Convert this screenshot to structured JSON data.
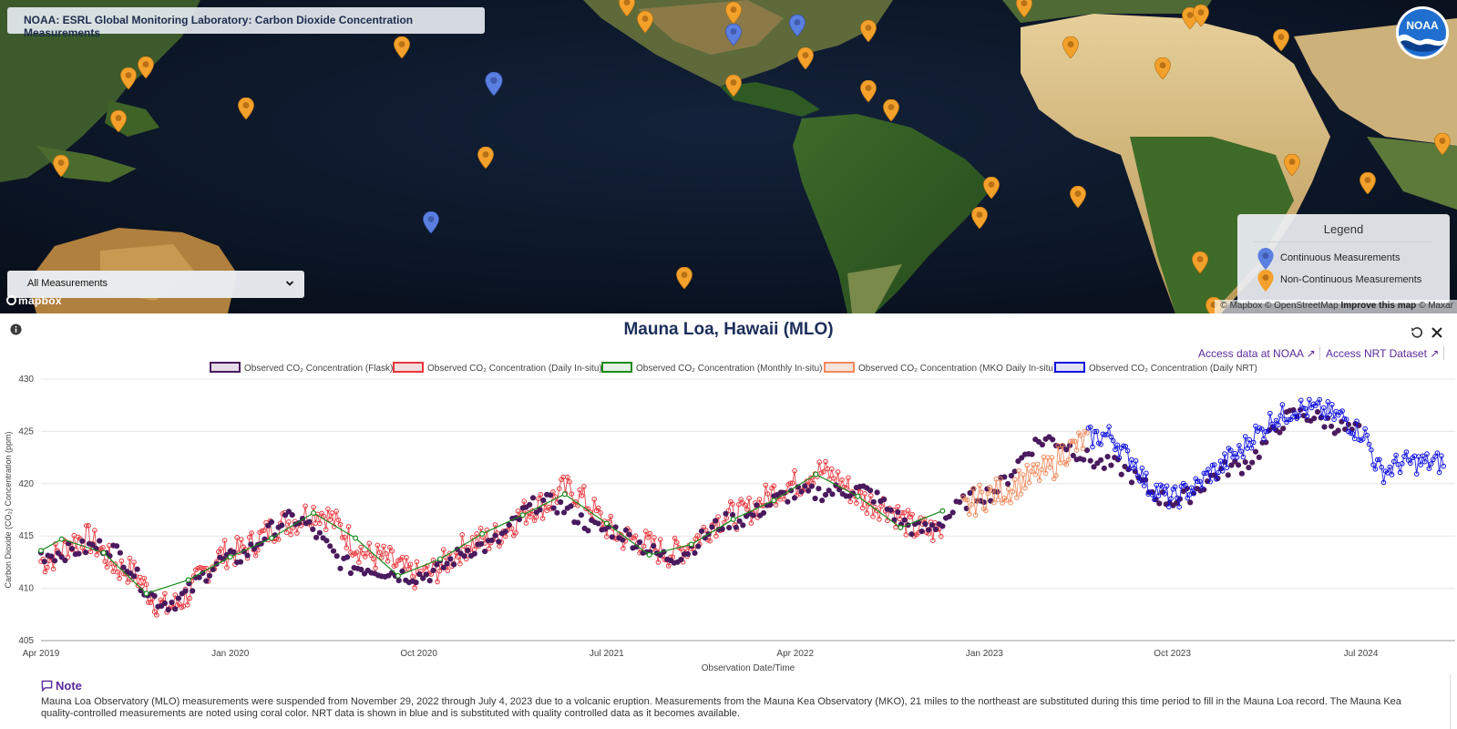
{
  "map": {
    "title": "NOAA: ESRL Global Monitoring Laboratory: Carbon Dioxide Concentration Measurements",
    "filter": {
      "selected": "All Measurements"
    },
    "legend": {
      "title": "Legend",
      "items": [
        {
          "label": "Continuous Measurements",
          "color": "#5b7fe0",
          "icon": "marker-icon"
        },
        {
          "label": "Non-Continuous Measurements",
          "color": "#f4a12c",
          "icon": "marker-icon"
        }
      ]
    },
    "attribution": {
      "mapbox": "© Mapbox",
      "osm": "© OpenStreetMap",
      "improve": "Improve this map",
      "maxar": "© Maxar"
    },
    "mapbox_logo": "mapbox",
    "noaa_logo": "NOAA"
  },
  "panel": {
    "title": "Mauna Loa, Hawaii (MLO)",
    "links": [
      {
        "label": "Access data at NOAA ↗"
      },
      {
        "label": "Access NRT Dataset ↗"
      }
    ]
  },
  "chart_data": {
    "type": "line",
    "xlabel": "Observation Date/Time",
    "ylabel": "Carbon Dioxide (CO₂) Concentration (ppm)",
    "ylim": [
      405,
      430
    ],
    "yticks": [
      "430",
      "425",
      "420",
      "415",
      "410",
      "405"
    ],
    "xticks": [
      "Apr 2019",
      "Jan 2020",
      "Oct 2020",
      "Jul 2021",
      "Apr 2022",
      "Jan 2023",
      "Oct 2023",
      "Jul 2024"
    ],
    "grid": true,
    "legend_position": "top",
    "series": [
      {
        "name": "Observed CO₂ Concentration (Flask)",
        "color": "#4a1a5e",
        "fill": "#e6dbe8",
        "x": [
          "2019-04",
          "2019-07",
          "2019-10",
          "2020-01",
          "2020-04",
          "2020-07",
          "2020-10",
          "2021-01",
          "2021-04",
          "2021-07",
          "2021-10",
          "2022-01",
          "2022-04",
          "2022-07",
          "2022-10",
          "2023-01",
          "2023-04",
          "2023-07",
          "2023-10",
          "2024-01",
          "2024-04",
          "2024-07"
        ],
        "values": [
          413.2,
          414.0,
          408.6,
          412.8,
          416.6,
          412.0,
          411.2,
          414.0,
          418.2,
          415.6,
          413.0,
          416.5,
          419.0,
          419.4,
          415.6,
          419.0,
          424.2,
          421.8,
          418.4,
          421.6,
          426.6,
          425.0
        ]
      },
      {
        "name": "Observed CO₂ Concentration (Daily In-situ)",
        "color": "#e8363d",
        "fill": "#f2dede",
        "x": [
          "2019-04",
          "2019-06",
          "2019-08",
          "2019-10",
          "2020-01",
          "2020-04",
          "2020-05",
          "2020-08",
          "2020-10",
          "2021-01",
          "2021-04",
          "2021-05",
          "2021-08",
          "2021-10",
          "2022-01",
          "2022-04",
          "2022-05",
          "2022-08",
          "2022-10",
          "2022-11"
        ],
        "values": [
          412.6,
          414.8,
          411.8,
          408.2,
          413.4,
          416.4,
          417.4,
          413.0,
          411.2,
          414.6,
          418.0,
          419.4,
          414.8,
          413.4,
          417.0,
          420.0,
          421.2,
          418.0,
          415.6,
          415.4
        ]
      },
      {
        "name": "Observed CO₂ Concentration (Monthly In-situ)",
        "color": "#1a8a1a",
        "fill": "#e6f2e6",
        "x": [
          "2019-04",
          "2019-05",
          "2019-07",
          "2019-09",
          "2019-11",
          "2020-01",
          "2020-03",
          "2020-05",
          "2020-07",
          "2020-09",
          "2020-11",
          "2021-01",
          "2021-03",
          "2021-05",
          "2021-07",
          "2021-09",
          "2021-11",
          "2022-01",
          "2022-03",
          "2022-05",
          "2022-07",
          "2022-09",
          "2022-11"
        ],
        "values": [
          413.6,
          414.7,
          413.4,
          409.5,
          410.8,
          413.0,
          414.8,
          417.2,
          414.8,
          411.2,
          412.8,
          415.2,
          417.0,
          419.0,
          416.2,
          413.2,
          414.2,
          416.6,
          418.4,
          420.9,
          418.8,
          415.8,
          417.4
        ]
      },
      {
        "name": "Observed CO₂ Concentration (MKO Daily In-situ)",
        "color": "#f08a5d",
        "fill": "#f6e3da",
        "x": [
          "2022-12",
          "2023-01",
          "2023-02",
          "2023-03",
          "2023-04",
          "2023-05",
          "2023-06"
        ],
        "values": [
          417.6,
          418.8,
          419.4,
          420.4,
          421.2,
          423.2,
          424.2
        ]
      },
      {
        "name": "Observed CO₂ Concentration (Daily NRT)",
        "color": "#1010e0",
        "fill": "#e2e2f6",
        "x": [
          "2023-06",
          "2023-07",
          "2023-08",
          "2023-09",
          "2023-10",
          "2023-11",
          "2023-12",
          "2024-01",
          "2024-02",
          "2024-03",
          "2024-04",
          "2024-05",
          "2024-06",
          "2024-07",
          "2024-08",
          "2024-09"
        ],
        "values": [
          424.4,
          424.6,
          422.4,
          419.6,
          418.6,
          419.6,
          421.2,
          422.8,
          424.8,
          426.4,
          427.2,
          427.0,
          426.4,
          425.0,
          421.2,
          422.0
        ]
      }
    ]
  },
  "note": {
    "title": "Note",
    "text": "Mauna Loa Observatory (MLO) measurements were suspended from November 29, 2022 through July 4, 2023 due to a volcanic eruption. Measurements from the Mauna Kea Observatory (MKO), 21 miles to the northeast are substituted during this time period to fill in the Mauna Loa record. The Mauna Kea quality-controlled measurements are noted using coral color. NRT data is shown in blue and is substituted with quality controlled data as it becomes available."
  }
}
